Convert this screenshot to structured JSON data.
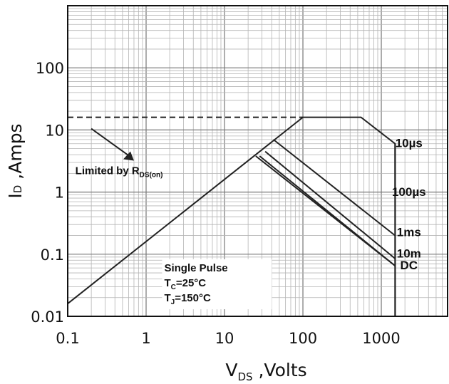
{
  "chart_data": {
    "type": "line",
    "title": "",
    "xscale": "log",
    "yscale": "log",
    "xlim": [
      0.1,
      7000
    ],
    "ylim": [
      0.01,
      1000
    ],
    "grid": true,
    "x_ticks": [
      {
        "value": 0.1,
        "label": "0.1"
      },
      {
        "value": 1,
        "label": "1"
      },
      {
        "value": 10,
        "label": "10"
      },
      {
        "value": 100,
        "label": "100"
      },
      {
        "value": 1000,
        "label": "1000"
      }
    ],
    "y_ticks": [
      {
        "value": 0.01,
        "label": "0.01"
      },
      {
        "value": 0.1,
        "label": "0.1"
      },
      {
        "value": 1,
        "label": "1"
      },
      {
        "value": 10,
        "label": "10"
      },
      {
        "value": 100,
        "label": "100"
      }
    ],
    "xlabel": {
      "main": "V",
      "sub": "DS",
      "rest": " ,Volts"
    },
    "ylabel": {
      "main": "I",
      "sub": "D",
      "rest": " ,Amps"
    },
    "current_limit": {
      "x": [
        0.1,
        100
      ],
      "y": 16
    },
    "rds_limit": {
      "x": [
        0.1,
        100
      ],
      "y": [
        0.016,
        16
      ]
    },
    "series": [
      {
        "name": "10µs",
        "x": [
          100,
          550,
          1500,
          1500
        ],
        "y": [
          16,
          16,
          6,
          0.85
        ]
      },
      {
        "name": "100µs",
        "x": [
          42,
          1500
        ],
        "y": [
          7,
          0.2
        ]
      },
      {
        "name": "1ms",
        "x": [
          33,
          1500
        ],
        "y": [
          4.5,
          0.085
        ]
      },
      {
        "name": "10m",
        "x": [
          28,
          1500
        ],
        "y": [
          3.8,
          0.065
        ]
      },
      {
        "name": "DC",
        "x": [
          25,
          1500
        ],
        "y": [
          3.8,
          0.065
        ]
      }
    ],
    "voltage_limit": {
      "x": 1500,
      "y": [
        0.01,
        6
      ]
    },
    "curve_labels": [
      {
        "text": "10µs",
        "x": 2250,
        "y": 5.3
      },
      {
        "text": "100µs",
        "x": 2250,
        "y": 0.87
      },
      {
        "text": "1ms",
        "x": 2250,
        "y": 0.195
      },
      {
        "text": "10m",
        "x": 2250,
        "y": 0.088
      },
      {
        "text": "DC",
        "x": 2250,
        "y": 0.057
      }
    ],
    "annotations": {
      "limited": {
        "text": "Limited by R",
        "sub": "DS(on)"
      },
      "pulse_lines": [
        {
          "main": "Single Pulse",
          "sub": "",
          "rest": ""
        },
        {
          "main": "T",
          "sub": "C",
          "rest": "=25°C"
        },
        {
          "main": "T",
          "sub": "J",
          "rest": "=150°C"
        }
      ]
    }
  }
}
